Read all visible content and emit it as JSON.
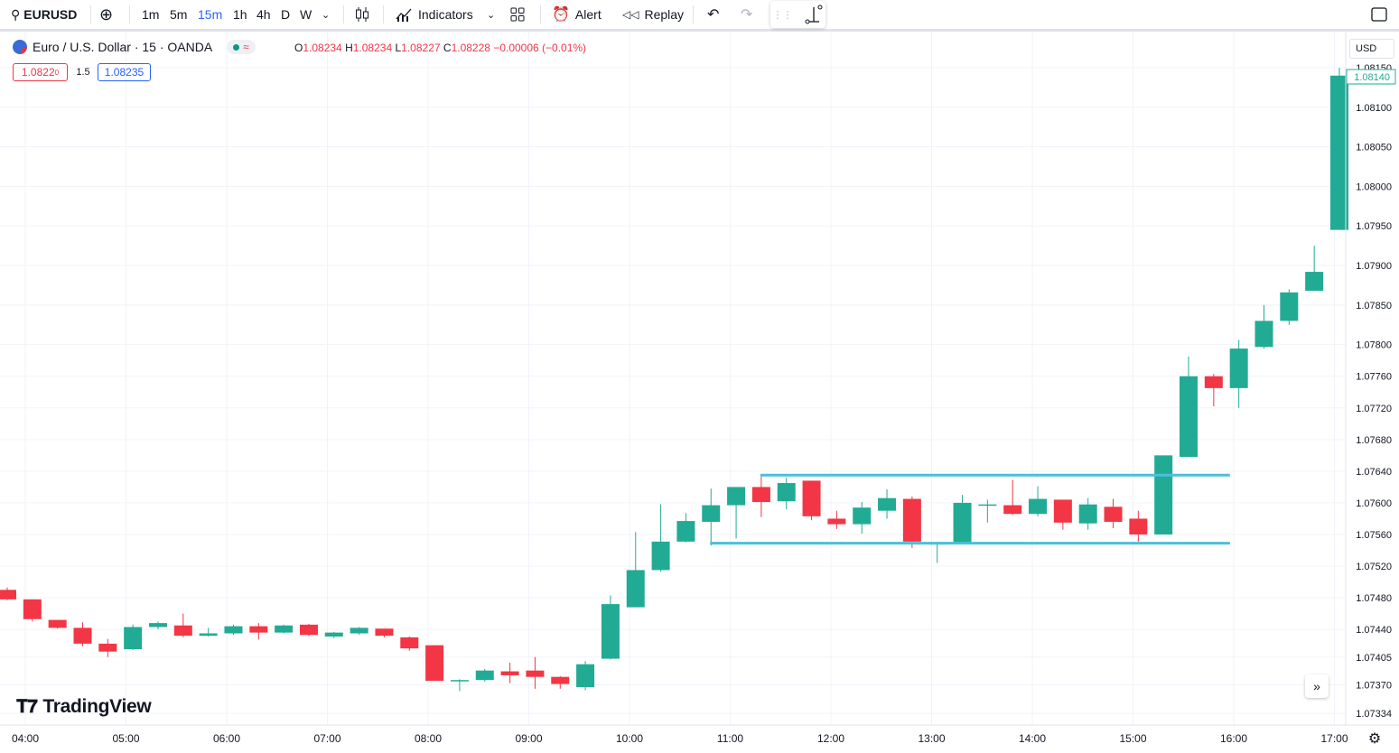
{
  "toolbar": {
    "symbol": "EURUSD",
    "timeframes": [
      "1m",
      "5m",
      "15m",
      "1h",
      "4h",
      "D",
      "W"
    ],
    "active_timeframe": "15m",
    "indicators_label": "Indicators",
    "alert_label": "Alert",
    "replay_label": "Replay"
  },
  "legend": {
    "title": "Euro / U.S. Dollar · 15 · OANDA",
    "badge": "≈",
    "open_label": "O",
    "open": "1.08234",
    "high_label": "H",
    "high": "1.08234",
    "low_label": "L",
    "low": "1.08227",
    "close_label": "C",
    "close": "1.08228",
    "change": "−0.00006 (−0.01%)"
  },
  "trade": {
    "sell": "1.0822",
    "sell_sup": "0",
    "spread": "1.5",
    "buy": "1.08235"
  },
  "currency": "USD",
  "logo_text": "TradingView",
  "colors": {
    "up": "#22ab94",
    "down": "#f23645",
    "range_lines": "#4bbfdc",
    "grid": "#f0f3fa"
  },
  "chart_data": {
    "type": "candlestick",
    "symbol": "EURUSD",
    "interval": "15",
    "x_tick_labels": [
      "04:00",
      "05:00",
      "06:00",
      "07:00",
      "08:00",
      "09:00",
      "10:00",
      "11:00",
      "12:00",
      "13:00",
      "14:00",
      "15:00",
      "16:00",
      "17:00"
    ],
    "y_tick_labels": [
      "1.08150",
      "1.08100",
      "1.08050",
      "1.08000",
      "1.07950",
      "1.07900",
      "1.07850",
      "1.07800",
      "1.07760",
      "1.07720",
      "1.07680",
      "1.07640",
      "1.07600",
      "1.07560",
      "1.07520",
      "1.07480",
      "1.07440",
      "1.07405",
      "1.07370",
      "1.07334"
    ],
    "last_price_label": "1.08140",
    "ylim": [
      1.07325,
      1.08158
    ],
    "range_lines": [
      {
        "price": 1.07635,
        "start_index": 30,
        "end_index": 48
      },
      {
        "price": 1.07549,
        "start_index": 28,
        "end_index": 48
      }
    ],
    "candles": [
      {
        "o": 1.0749,
        "h": 1.07493,
        "l": 1.07477,
        "c": 1.07478
      },
      {
        "o": 1.07478,
        "h": 1.07478,
        "l": 1.0745,
        "c": 1.07453
      },
      {
        "o": 1.07452,
        "h": 1.07452,
        "l": 1.07441,
        "c": 1.07442
      },
      {
        "o": 1.07442,
        "h": 1.07449,
        "l": 1.07419,
        "c": 1.07422
      },
      {
        "o": 1.07422,
        "h": 1.07428,
        "l": 1.07405,
        "c": 1.07412
      },
      {
        "o": 1.07415,
        "h": 1.07446,
        "l": 1.07414,
        "c": 1.07443
      },
      {
        "o": 1.07443,
        "h": 1.0745,
        "l": 1.0744,
        "c": 1.07448
      },
      {
        "o": 1.07445,
        "h": 1.0746,
        "l": 1.0743,
        "c": 1.07432
      },
      {
        "o": 1.07432,
        "h": 1.07442,
        "l": 1.07431,
        "c": 1.07435
      },
      {
        "o": 1.07435,
        "h": 1.07446,
        "l": 1.07433,
        "c": 1.07444
      },
      {
        "o": 1.07444,
        "h": 1.07448,
        "l": 1.07427,
        "c": 1.07436
      },
      {
        "o": 1.07436,
        "h": 1.07446,
        "l": 1.07435,
        "c": 1.07445
      },
      {
        "o": 1.07446,
        "h": 1.07447,
        "l": 1.07432,
        "c": 1.07433
      },
      {
        "o": 1.07431,
        "h": 1.07437,
        "l": 1.07429,
        "c": 1.07436
      },
      {
        "o": 1.07435,
        "h": 1.07443,
        "l": 1.07433,
        "c": 1.07442
      },
      {
        "o": 1.07441,
        "h": 1.07441,
        "l": 1.0743,
        "c": 1.07432
      },
      {
        "o": 1.0743,
        "h": 1.07431,
        "l": 1.07413,
        "c": 1.07416
      },
      {
        "o": 1.0742,
        "h": 1.0742,
        "l": 1.07375,
        "c": 1.07375
      },
      {
        "o": 1.07376,
        "h": 1.07377,
        "l": 1.07362,
        "c": 1.07376
      },
      {
        "o": 1.07376,
        "h": 1.0739,
        "l": 1.07374,
        "c": 1.07388
      },
      {
        "o": 1.07387,
        "h": 1.07398,
        "l": 1.07372,
        "c": 1.07382
      },
      {
        "o": 1.07388,
        "h": 1.07405,
        "l": 1.07365,
        "c": 1.0738
      },
      {
        "o": 1.0738,
        "h": 1.07381,
        "l": 1.07365,
        "c": 1.07371
      },
      {
        "o": 1.07367,
        "h": 1.074,
        "l": 1.07363,
        "c": 1.07396
      },
      {
        "o": 1.07403,
        "h": 1.07483,
        "l": 1.07402,
        "c": 1.07472
      },
      {
        "o": 1.07468,
        "h": 1.07563,
        "l": 1.07468,
        "c": 1.07515
      },
      {
        "o": 1.07515,
        "h": 1.07598,
        "l": 1.07513,
        "c": 1.07551
      },
      {
        "o": 1.07551,
        "h": 1.07587,
        "l": 1.0755,
        "c": 1.07577
      },
      {
        "o": 1.07576,
        "h": 1.07618,
        "l": 1.07546,
        "c": 1.07597
      },
      {
        "o": 1.07597,
        "h": 1.0762,
        "l": 1.07555,
        "c": 1.0762
      },
      {
        "o": 1.0762,
        "h": 1.07634,
        "l": 1.07582,
        "c": 1.07601
      },
      {
        "o": 1.07602,
        "h": 1.07632,
        "l": 1.07592,
        "c": 1.07625
      },
      {
        "o": 1.07628,
        "h": 1.07628,
        "l": 1.07578,
        "c": 1.07583
      },
      {
        "o": 1.0758,
        "h": 1.0759,
        "l": 1.07567,
        "c": 1.07573
      },
      {
        "o": 1.07573,
        "h": 1.07601,
        "l": 1.07561,
        "c": 1.07594
      },
      {
        "o": 1.0759,
        "h": 1.07617,
        "l": 1.0758,
        "c": 1.07606
      },
      {
        "o": 1.07605,
        "h": 1.07608,
        "l": 1.07543,
        "c": 1.07551
      },
      {
        "o": 1.07549,
        "h": 1.07549,
        "l": 1.07524,
        "c": 1.07549
      },
      {
        "o": 1.07549,
        "h": 1.0761,
        "l": 1.07549,
        "c": 1.076
      },
      {
        "o": 1.07598,
        "h": 1.07604,
        "l": 1.07575,
        "c": 1.07598
      },
      {
        "o": 1.07597,
        "h": 1.07629,
        "l": 1.07585,
        "c": 1.07586
      },
      {
        "o": 1.07586,
        "h": 1.07621,
        "l": 1.07583,
        "c": 1.07605
      },
      {
        "o": 1.07604,
        "h": 1.07604,
        "l": 1.07566,
        "c": 1.07575
      },
      {
        "o": 1.07574,
        "h": 1.07606,
        "l": 1.07566,
        "c": 1.07598
      },
      {
        "o": 1.07595,
        "h": 1.07605,
        "l": 1.07568,
        "c": 1.07576
      },
      {
        "o": 1.0758,
        "h": 1.0759,
        "l": 1.07551,
        "c": 1.0756
      },
      {
        "o": 1.0756,
        "h": 1.0766,
        "l": 1.0756,
        "c": 1.0766
      },
      {
        "o": 1.07658,
        "h": 1.07785,
        "l": 1.07658,
        "c": 1.0776
      },
      {
        "o": 1.0776,
        "h": 1.07763,
        "l": 1.07722,
        "c": 1.07745
      },
      {
        "o": 1.07745,
        "h": 1.07806,
        "l": 1.0772,
        "c": 1.07795
      },
      {
        "o": 1.07797,
        "h": 1.0785,
        "l": 1.07795,
        "c": 1.0783
      },
      {
        "o": 1.0783,
        "h": 1.0787,
        "l": 1.07825,
        "c": 1.07866
      },
      {
        "o": 1.07868,
        "h": 1.07925,
        "l": 1.07868,
        "c": 1.07892
      },
      {
        "o": 1.07945,
        "h": 1.0815,
        "l": 1.07945,
        "c": 1.0814
      }
    ]
  }
}
